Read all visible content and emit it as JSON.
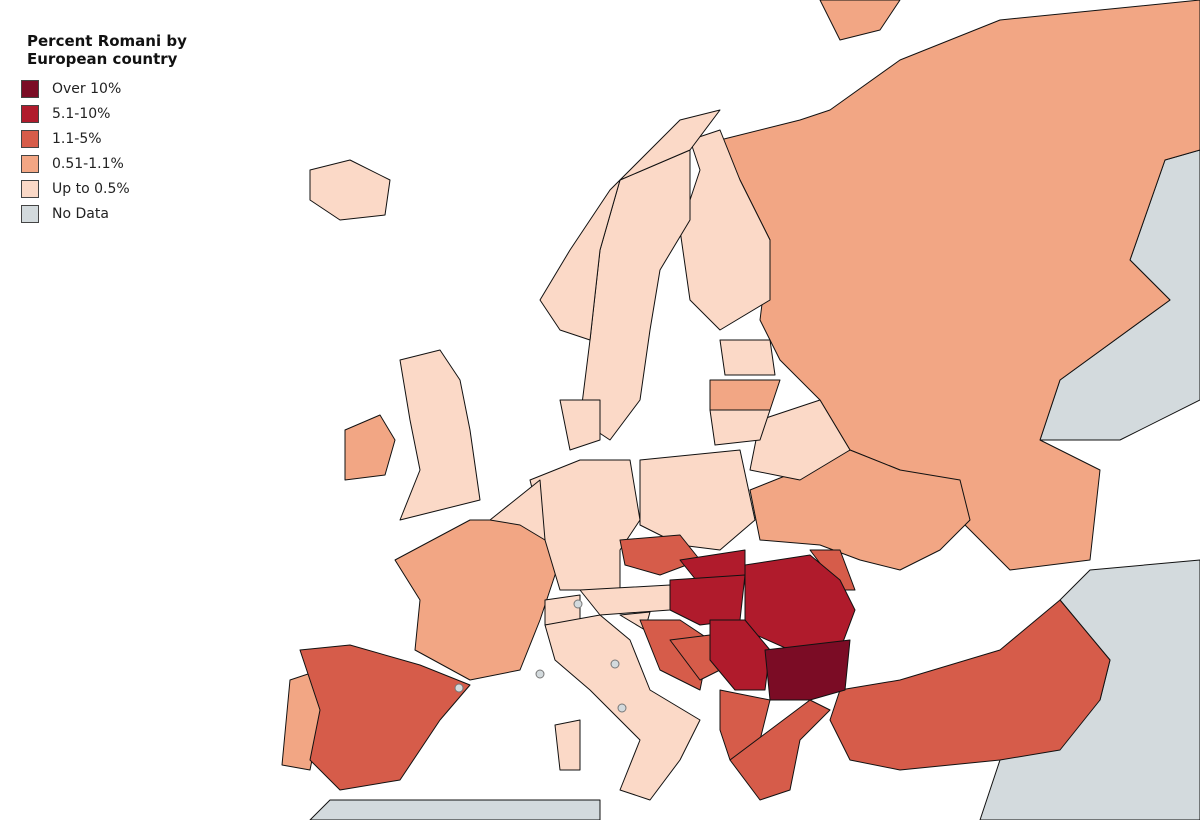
{
  "legend": {
    "title": "Percent Romani by European country",
    "items": [
      {
        "label": "Over 10%",
        "color": "#7b0c25"
      },
      {
        "label": "5.1-10%",
        "color": "#b01b2c"
      },
      {
        "label": "1.1-5%",
        "color": "#d65c4a"
      },
      {
        "label": "0.51-1.1%",
        "color": "#f2a684"
      },
      {
        "label": "Up to 0.5%",
        "color": "#fbd9c7"
      },
      {
        "label": "No Data",
        "color": "#d3dadd"
      }
    ]
  }
}
